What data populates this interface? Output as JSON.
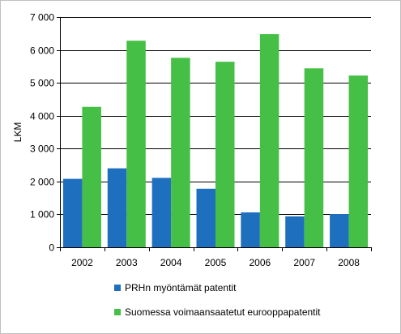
{
  "chart_data": {
    "type": "bar",
    "categories": [
      "2002",
      "2003",
      "2004",
      "2005",
      "2006",
      "2007",
      "2008"
    ],
    "series": [
      {
        "name": "PRHn myöntämät patentit",
        "color": "#1f6fbf",
        "values": [
          2080,
          2400,
          2110,
          1780,
          1060,
          940,
          1010
        ]
      },
      {
        "name": "Suomessa voimaansaatetut eurooppapatentit",
        "color": "#45bf45",
        "values": [
          4270,
          6280,
          5760,
          5640,
          6480,
          5440,
          5220
        ]
      }
    ],
    "ylabel": "LKM",
    "ylim": [
      0,
      7000
    ],
    "yticks": [
      0,
      1000,
      2000,
      3000,
      4000,
      5000,
      6000,
      7000
    ],
    "ytick_labels": [
      "0",
      "1 000",
      "2 000",
      "3 000",
      "4 000",
      "5 000",
      "6 000",
      "7 000"
    ],
    "grid": true,
    "legend_position": "bottom"
  }
}
